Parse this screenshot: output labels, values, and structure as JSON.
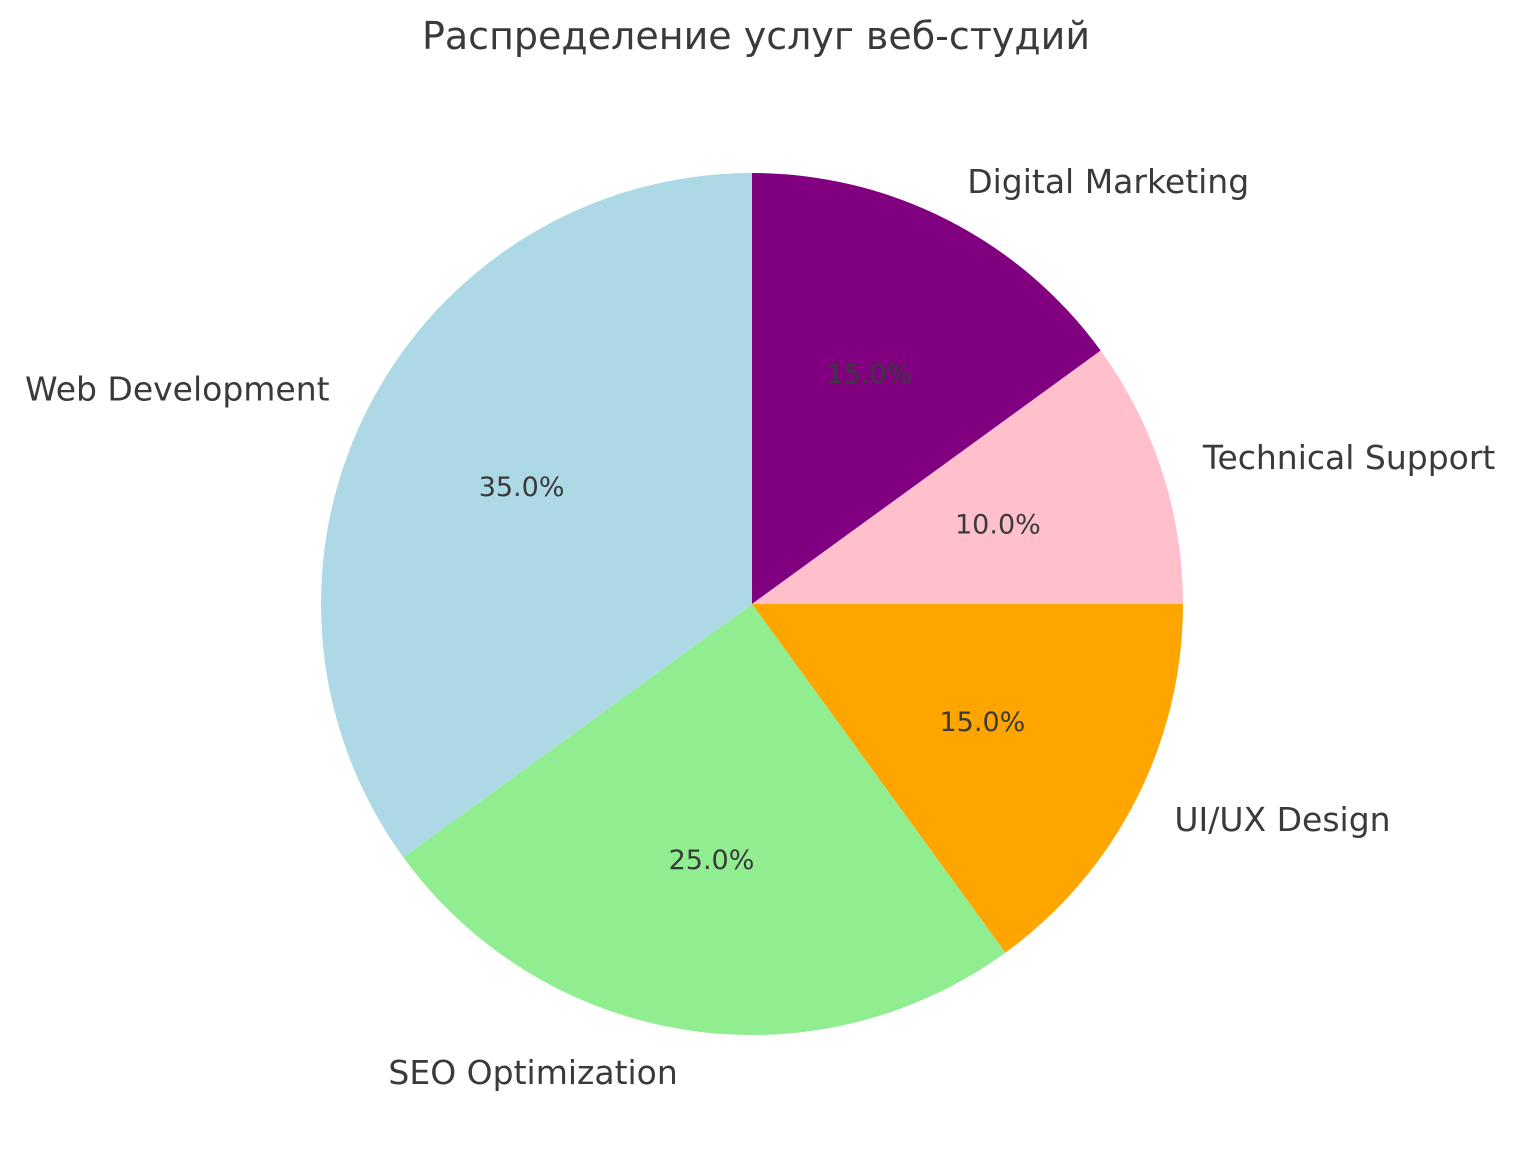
{
  "chart_data": {
    "type": "pie",
    "title": "Распределение услуг веб-студий",
    "slices": [
      {
        "label": "Digital Marketing",
        "value": 15.0,
        "percent_label": "15.0%",
        "color": "#800080"
      },
      {
        "label": "Technical Support",
        "value": 10.0,
        "percent_label": "10.0%",
        "color": "#FFC0CB"
      },
      {
        "label": "UI/UX Design",
        "value": 15.0,
        "percent_label": "15.0%",
        "color": "#FFA500"
      },
      {
        "label": "SEO Optimization",
        "value": 25.0,
        "percent_label": "25.0%",
        "color": "#90EE90"
      },
      {
        "label": "Web Development",
        "value": 35.0,
        "percent_label": "35.0%",
        "color": "#ADD8E6"
      }
    ],
    "start_angle": "top",
    "direction": "clockwise",
    "legend": "none",
    "label_position": "outside",
    "percent_position": "inside",
    "text_color": "#3a3a3a",
    "background": "#ffffff"
  }
}
